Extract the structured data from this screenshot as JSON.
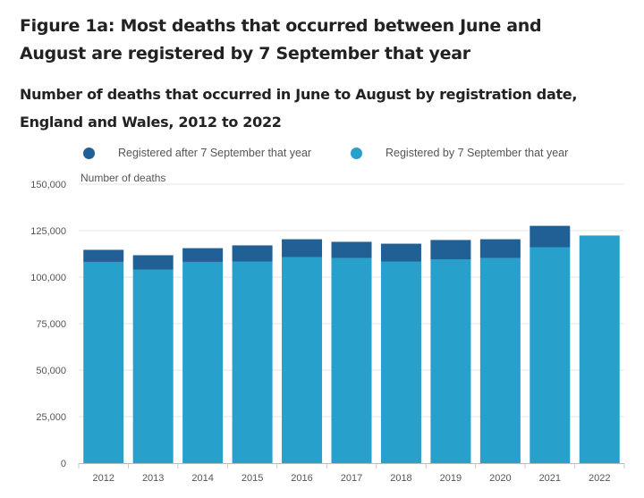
{
  "title": "Figure 1a: Most deaths that occurred between June and August are registered by 7 September that year",
  "subtitle": "Number of deaths that occurred in June to August by registration date, England and Wales, 2012 to 2022",
  "chart_data": {
    "type": "bar",
    "stacked": true,
    "ylabel": "Number of deaths",
    "ylim": [
      0,
      150000
    ],
    "yticks": [
      "0",
      "25,000",
      "50,000",
      "75,000",
      "100,000",
      "125,000",
      "150,000"
    ],
    "ytick_values": [
      0,
      25000,
      50000,
      75000,
      100000,
      125000,
      150000
    ],
    "categories": [
      "2012",
      "2013",
      "2014",
      "2015",
      "2016",
      "2017",
      "2018",
      "2019",
      "2020",
      "2021",
      "2022"
    ],
    "series": [
      {
        "name": "Registered by 7 September that year",
        "color": "#27a0cc",
        "values": [
          108200,
          104100,
          108200,
          108400,
          110800,
          110300,
          108400,
          109600,
          110300,
          116100,
          122400
        ]
      },
      {
        "name": "Registered after 7 September that year",
        "color": "#206095",
        "values": [
          6500,
          7700,
          7400,
          8700,
          9600,
          8700,
          9600,
          10400,
          10100,
          11500,
          0
        ]
      }
    ],
    "legend": [
      {
        "label": "Registered after 7 September that year",
        "color": "#206095"
      },
      {
        "label": "Registered by 7 September that year",
        "color": "#27a0cc"
      }
    ],
    "grid": true,
    "legend_position": "top"
  }
}
